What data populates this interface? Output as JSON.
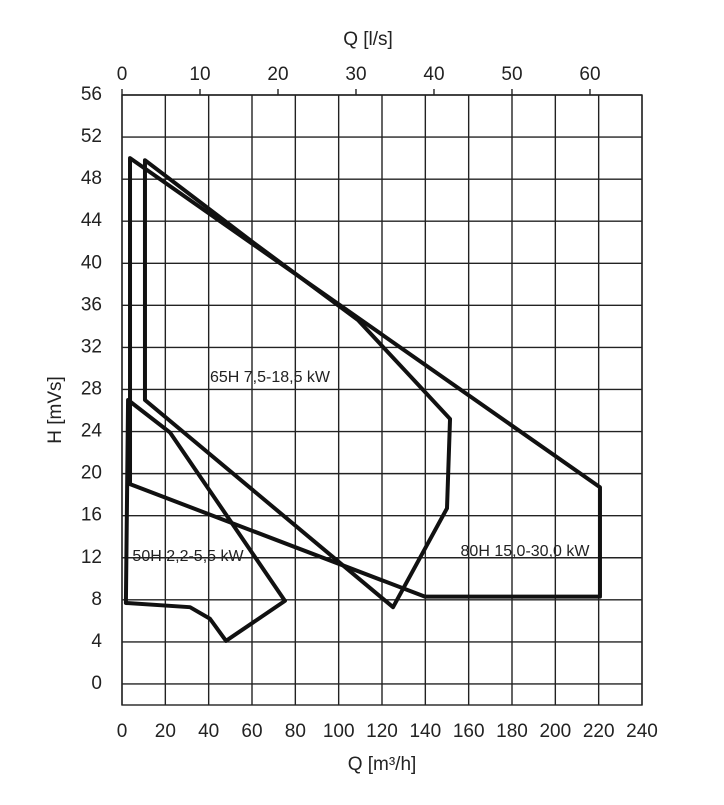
{
  "chart_data": {
    "type": "line",
    "x_label": "Q [m³/h]",
    "x2_label": "Q [l/s]",
    "y_label": "H [mVs]",
    "xlim": [
      0,
      240
    ],
    "xticks": [
      0,
      20,
      40,
      60,
      80,
      100,
      120,
      140,
      160,
      180,
      200,
      220,
      240
    ],
    "x2lim": [
      0,
      66.67
    ],
    "x2ticks": [
      0,
      10,
      20,
      30,
      40,
      50,
      60
    ],
    "ylim": [
      -2,
      56
    ],
    "yticks": [
      0,
      4,
      8,
      12,
      16,
      20,
      24,
      28,
      32,
      36,
      40,
      44,
      48,
      52,
      56
    ],
    "grid": true,
    "series": [
      {
        "name": "50H 2,2-5,5 kW",
        "color": "#111111",
        "x": [
          2.8,
          22.2,
          75.2,
          48,
          40.6,
          31.4,
          1.8
        ],
        "values": [
          27,
          23.9,
          7.9,
          4.1,
          6.2,
          7.3,
          7.7
        ]
      },
      {
        "name": "65H 7,5-18,5 kW",
        "color": "#111111",
        "x": [
          10.6,
          59.1,
          108.9,
          132.9,
          151.4,
          150,
          125.1,
          10.6
        ],
        "values": [
          49.8,
          42.2,
          34.6,
          29.3,
          25.2,
          16.7,
          7.3,
          27
        ]
      },
      {
        "name": "80H 15,0-30,0 kW",
        "color": "#111111",
        "x": [
          3.7,
          220.6,
          220.6,
          139.8,
          3.7
        ],
        "values": [
          50,
          18.7,
          8.3,
          8.3,
          19
        ]
      }
    ]
  }
}
